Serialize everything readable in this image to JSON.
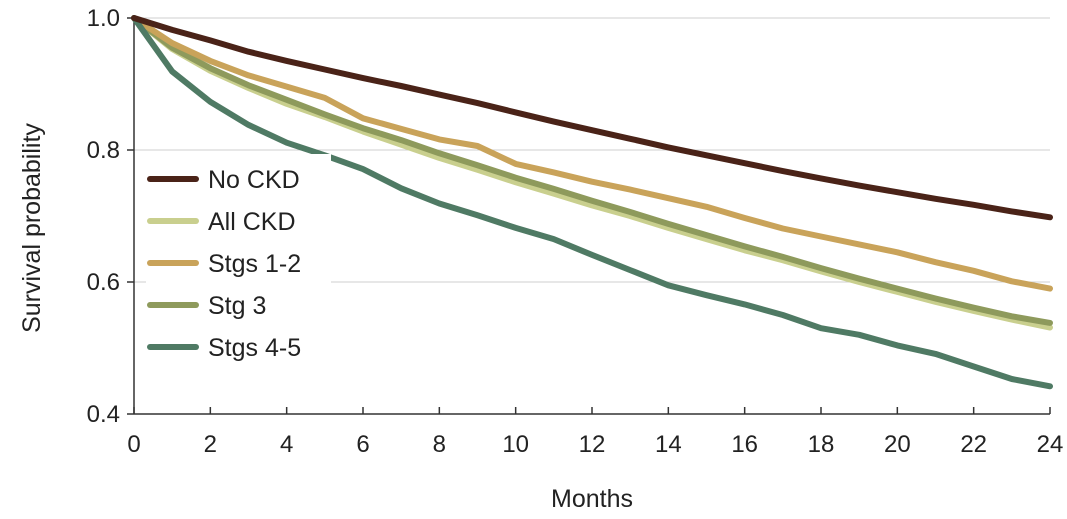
{
  "chart_data": {
    "type": "line",
    "title": "",
    "xlabel": "Months",
    "ylabel": "Survival probability",
    "xlim": [
      0,
      24
    ],
    "ylim": [
      0.4,
      1.0
    ],
    "x_ticks": [
      0,
      2,
      4,
      6,
      8,
      10,
      12,
      14,
      16,
      18,
      20,
      22,
      24
    ],
    "x_tick_labels": [
      "0",
      "2",
      "4",
      "6",
      "8",
      "10",
      "12",
      "14",
      "16",
      "18",
      "20",
      "22",
      "24"
    ],
    "y_ticks": [
      0.4,
      0.6,
      0.8,
      1.0
    ],
    "y_tick_labels": [
      "0.4",
      "0.6",
      "0.8",
      "1.0"
    ],
    "grid": "horizontal",
    "legend_position": "left",
    "x": [
      0,
      1,
      2,
      3,
      4,
      5,
      6,
      7,
      8,
      9,
      10,
      11,
      12,
      13,
      14,
      15,
      16,
      17,
      18,
      19,
      20,
      21,
      22,
      23,
      24
    ],
    "series": [
      {
        "name": "No CKD",
        "color": "#4a2318",
        "values": [
          1.0,
          0.982,
          0.966,
          0.949,
          0.935,
          0.922,
          0.909,
          0.897,
          0.884,
          0.871,
          0.857,
          0.843,
          0.83,
          0.817,
          0.804,
          0.792,
          0.78,
          0.768,
          0.757,
          0.746,
          0.736,
          0.726,
          0.717,
          0.707,
          0.698
        ]
      },
      {
        "name": "All CKD",
        "color": "#c9cf8e",
        "values": [
          1.0,
          0.953,
          0.92,
          0.894,
          0.87,
          0.85,
          0.828,
          0.808,
          0.788,
          0.77,
          0.751,
          0.734,
          0.716,
          0.7,
          0.682,
          0.665,
          0.648,
          0.633,
          0.616,
          0.6,
          0.585,
          0.57,
          0.556,
          0.543,
          0.531
        ]
      },
      {
        "name": "Stgs 1-2",
        "color": "#c9a35a",
        "values": [
          1.0,
          0.962,
          0.935,
          0.913,
          0.896,
          0.879,
          0.848,
          0.832,
          0.816,
          0.806,
          0.779,
          0.766,
          0.752,
          0.74,
          0.727,
          0.714,
          0.697,
          0.681,
          0.669,
          0.657,
          0.645,
          0.63,
          0.617,
          0.601,
          0.59
        ]
      },
      {
        "name": "Stg 3",
        "color": "#8e9a5c",
        "values": [
          1.0,
          0.955,
          0.924,
          0.898,
          0.876,
          0.854,
          0.833,
          0.815,
          0.795,
          0.777,
          0.758,
          0.741,
          0.723,
          0.706,
          0.688,
          0.671,
          0.654,
          0.638,
          0.621,
          0.605,
          0.59,
          0.575,
          0.561,
          0.548,
          0.538
        ]
      },
      {
        "name": "Stgs 4-5",
        "color": "#4f7a64",
        "values": [
          1.0,
          0.919,
          0.873,
          0.838,
          0.811,
          0.792,
          0.771,
          0.742,
          0.719,
          0.701,
          0.682,
          0.665,
          0.641,
          0.618,
          0.595,
          0.58,
          0.566,
          0.55,
          0.53,
          0.52,
          0.504,
          0.491,
          0.472,
          0.453,
          0.442
        ]
      }
    ]
  }
}
